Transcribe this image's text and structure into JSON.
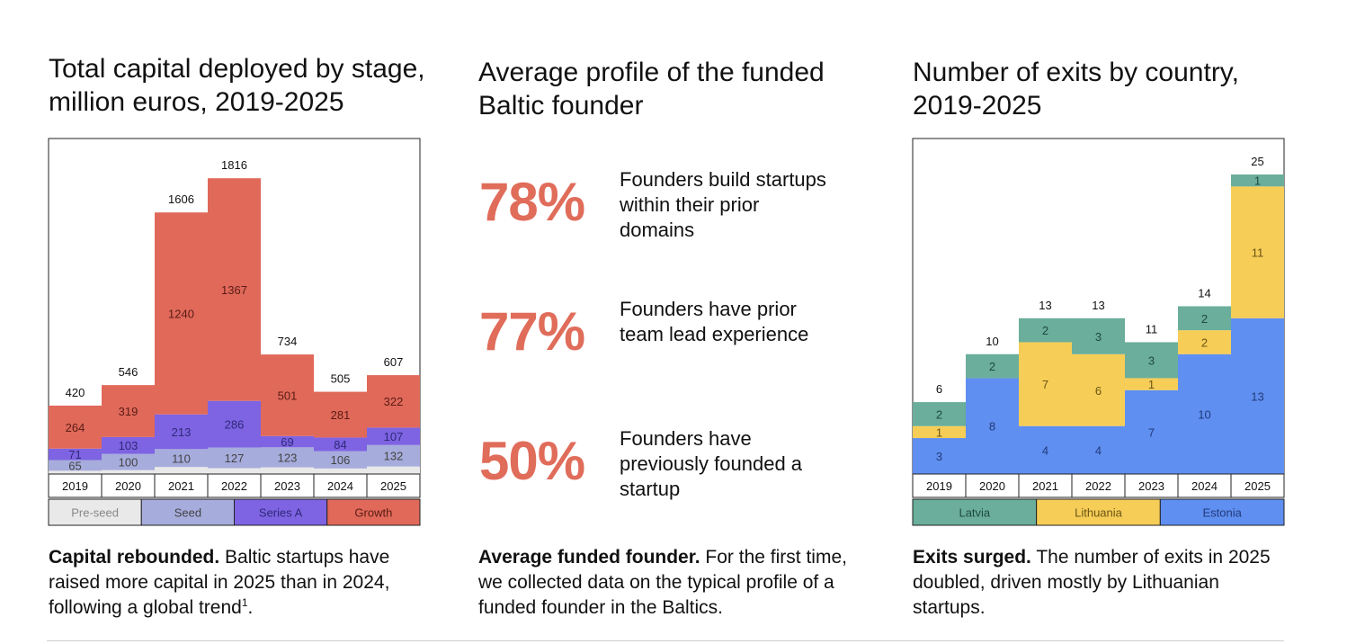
{
  "left": {
    "title": "Total capital deployed by stage, million euros, 2019-2025",
    "caption_bold": "Capital rebounded.",
    "caption_text": " Baltic startups have raised more capital in 2025 than in 2024, following a global trend",
    "caption_sup": "1",
    "caption_end": "."
  },
  "middle": {
    "title": "Average profile of the funded Baltic founder",
    "stats": [
      {
        "value": "78%",
        "text": "Founders build startups within their prior domains"
      },
      {
        "value": "77%",
        "text": "Founders have prior team lead experience"
      },
      {
        "value": "50%",
        "text": "Founders have previously founded a startup"
      }
    ],
    "caption_bold": "Average funded founder.",
    "caption_text": " For the first time, we collected data on the typical profile of a funded founder in the Baltics."
  },
  "right": {
    "title": "Number of exits by country, 2019-2025",
    "caption_bold": "Exits surged.",
    "caption_text": " The number of exits in 2025 doubled, driven mostly by Lithuanian startups."
  },
  "chart_data": [
    {
      "type": "bar",
      "stacked": true,
      "title": "Total capital deployed by stage, million euros, 2019-2025",
      "categories": [
        "2019",
        "2020",
        "2021",
        "2022",
        "2023",
        "2024",
        "2025"
      ],
      "series": [
        {
          "name": "Pre-seed",
          "color": "#e9e9e9",
          "text_color": "#888888",
          "values": [
            20,
            24,
            43,
            36,
            41,
            34,
            46
          ]
        },
        {
          "name": "Seed",
          "color": "#a6acdc",
          "text_color": "#444444",
          "values": [
            65,
            100,
            110,
            127,
            123,
            106,
            132
          ]
        },
        {
          "name": "Series A",
          "color": "#7e63e2",
          "text_color": "#2e2a7a",
          "values": [
            71,
            103,
            213,
            286,
            69,
            84,
            107
          ]
        },
        {
          "name": "Growth",
          "color": "#e0695a",
          "text_color": "#5a1c14",
          "values": [
            264,
            319,
            1240,
            1367,
            501,
            281,
            322
          ]
        }
      ],
      "totals": [
        420,
        546,
        1606,
        1816,
        734,
        505,
        607
      ],
      "label_series": [
        "Seed",
        "Series A",
        "Growth"
      ],
      "ylim": [
        0,
        2060
      ],
      "legend_position": "bottom"
    },
    {
      "type": "bar",
      "stacked": true,
      "title": "Number of exits by country, 2019-2025",
      "categories": [
        "2019",
        "2020",
        "2021",
        "2022",
        "2023",
        "2024",
        "2025"
      ],
      "series": [
        {
          "name": "Estonia",
          "color": "#5f8ff0",
          "text_color": "#223a7a",
          "values": [
            3,
            8,
            4,
            4,
            7,
            10,
            13
          ]
        },
        {
          "name": "Lithuania",
          "color": "#f6cd57",
          "text_color": "#6b5516",
          "values": [
            1,
            0,
            7,
            6,
            1,
            2,
            11
          ]
        },
        {
          "name": "Latvia",
          "color": "#6aae9b",
          "text_color": "#1f4a3e",
          "values": [
            2,
            2,
            2,
            3,
            3,
            2,
            1
          ]
        }
      ],
      "totals": [
        6,
        10,
        13,
        13,
        11,
        14,
        25
      ],
      "label_series": [
        "Estonia",
        "Lithuania",
        "Latvia"
      ],
      "ylim": [
        0,
        28
      ],
      "legend_order": [
        "Latvia",
        "Lithuania",
        "Estonia"
      ],
      "legend_position": "bottom"
    }
  ]
}
